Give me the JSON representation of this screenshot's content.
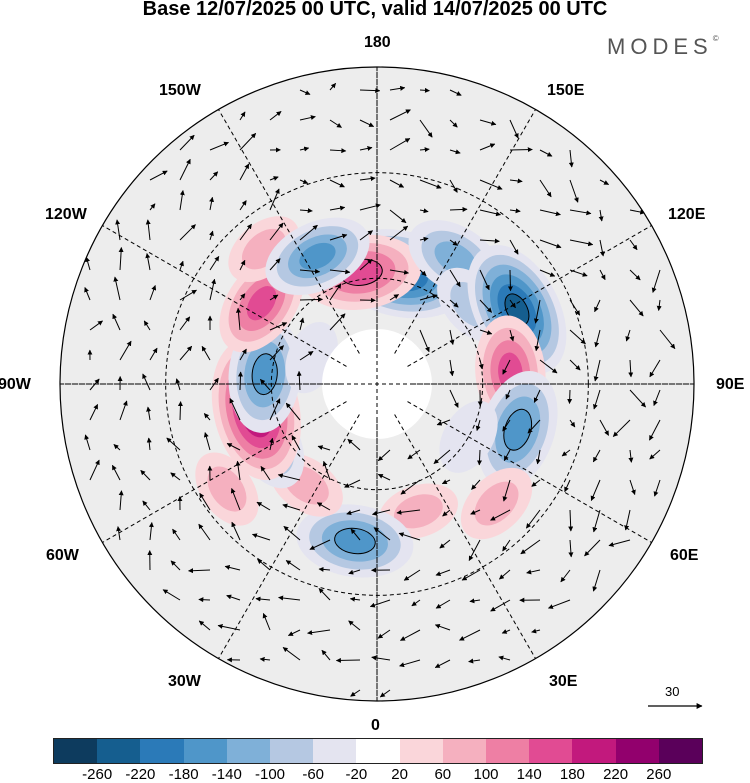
{
  "title": "Base 12/07/2025 00 UTC, valid 14/07/2025 00 UTC",
  "brand": "MODES",
  "brand_mark": "©",
  "longitude_labels": {
    "top": "180",
    "bottom": "0",
    "left": "90W",
    "right": "90E",
    "upper_left_1": "150W",
    "upper_left_2": "120W",
    "upper_right_1": "150E",
    "upper_right_2": "120E",
    "lower_left_1": "60W",
    "lower_left_2": "30W",
    "lower_right_1": "60E",
    "lower_right_2": "30E"
  },
  "reference_vector": "30",
  "colorbar": {
    "colors": [
      "#0d3b5e",
      "#155e8f",
      "#2b7ab8",
      "#4f96c9",
      "#7fb0d8",
      "#b5c8e2",
      "#e4e4f0",
      "#ffffff",
      "#fad6da",
      "#f5b0bf",
      "#ee7fa4",
      "#e14b93",
      "#c2197d",
      "#92006d",
      "#5a005a"
    ],
    "ticks": [
      "-260",
      "-220",
      "-180",
      "-140",
      "-100",
      "-60",
      "-20",
      "20",
      "60",
      "100",
      "140",
      "180",
      "220",
      "260"
    ]
  },
  "anomaly_cells": [
    {
      "lon": 168,
      "lat": 58,
      "value": -230
    },
    {
      "lon": -172,
      "lat": 58,
      "value": 170
    },
    {
      "lon": 148,
      "lat": 48,
      "value": -120
    },
    {
      "lon": 130,
      "lat": 55,
      "value": -70
    },
    {
      "lon": 118,
      "lat": 45,
      "value": -220
    },
    {
      "lon": 95,
      "lat": 52,
      "value": 150
    },
    {
      "lon": 72,
      "lat": 48,
      "value": -170
    },
    {
      "lon": 45,
      "lat": 42,
      "value": 70
    },
    {
      "lon": 18,
      "lat": 52,
      "value": 60
    },
    {
      "lon": -8,
      "lat": 45,
      "value": -160
    },
    {
      "lon": -35,
      "lat": 55,
      "value": 60
    },
    {
      "lon": -55,
      "lat": 38,
      "value": 60
    },
    {
      "lon": -62,
      "lat": 55,
      "value": -110
    },
    {
      "lon": -78,
      "lat": 55,
      "value": 230
    },
    {
      "lon": -95,
      "lat": 58,
      "value": -160
    },
    {
      "lon": -125,
      "lat": 50,
      "value": 140
    },
    {
      "lon": -140,
      "lat": 40,
      "value": 60
    },
    {
      "lon": -155,
      "lat": 50,
      "value": -140
    },
    {
      "lon": -112,
      "lat": 70,
      "value": -40
    },
    {
      "lon": 60,
      "lat": 60,
      "value": -50
    }
  ]
}
